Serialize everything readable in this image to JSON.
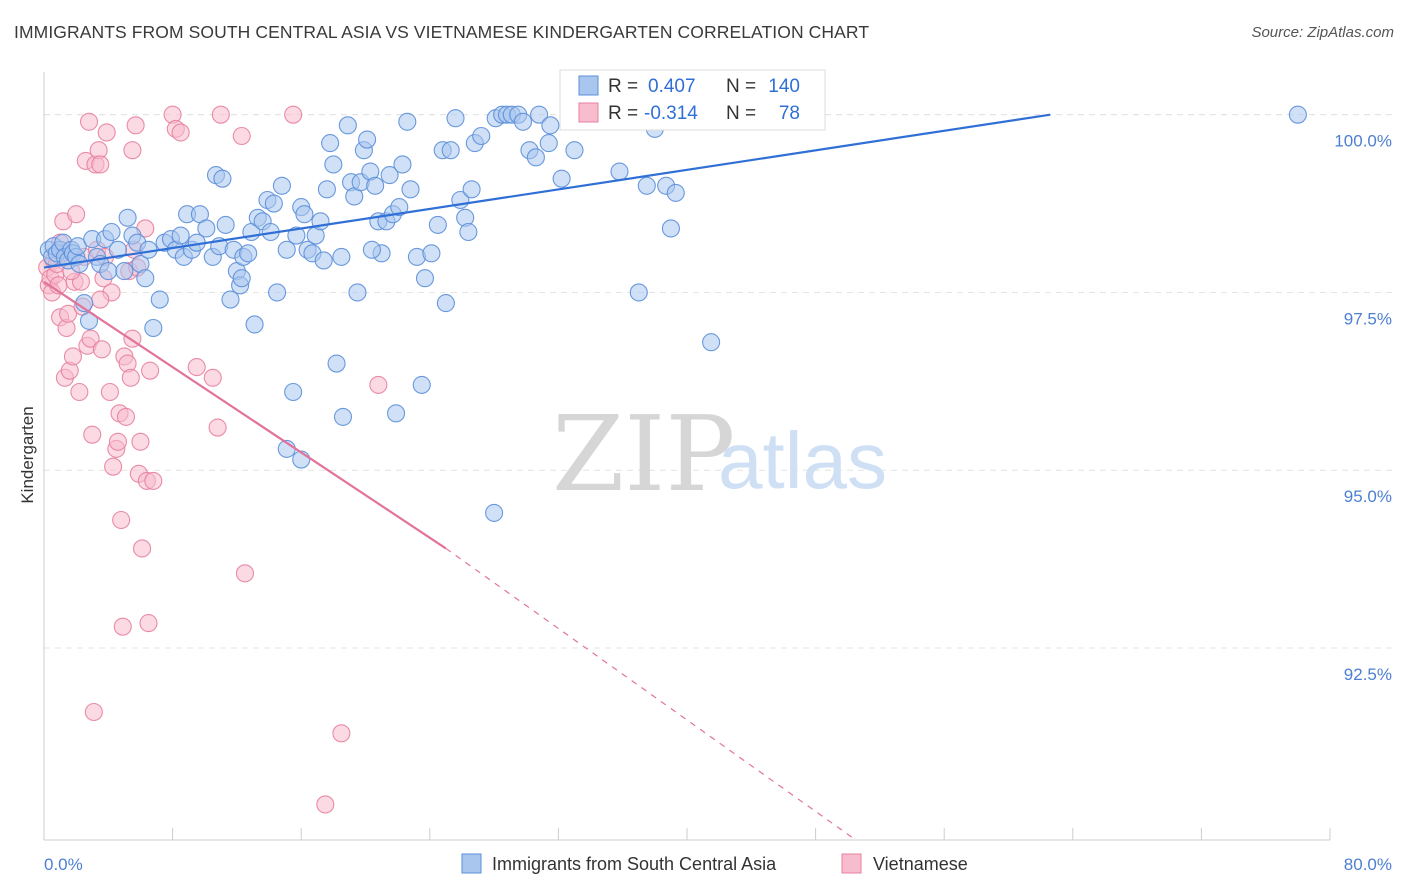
{
  "header": {
    "title": "IMMIGRANTS FROM SOUTH CENTRAL ASIA VS VIETNAMESE KINDERGARTEN CORRELATION CHART",
    "source": "Source: ZipAtlas.com"
  },
  "watermark": {
    "zip": "ZIP",
    "atlas": "atlas"
  },
  "stats": {
    "r_label": "R =",
    "n_label": "N =",
    "blue": {
      "r": "0.407",
      "n": "140"
    },
    "pink": {
      "r": "-0.314",
      "n": "78"
    }
  },
  "colors": {
    "blue_fill": "#a9c6ef",
    "blue_stroke": "#5b8fd9",
    "blue_line": "#2f6fd6",
    "pink_fill": "#f7bccd",
    "pink_stroke": "#e7819f",
    "pink_line": "#e2739a",
    "grid": "#e4e4e4",
    "tick_text": "#4d7fd1"
  },
  "chart_data": {
    "type": "scatter",
    "title": "IMMIGRANTS FROM SOUTH CENTRAL ASIA VS VIETNAMESE KINDERGARTEN CORRELATION CHART",
    "xlabel": "",
    "ylabel": "Kindergarten",
    "xlim": [
      0,
      80
    ],
    "ylim": [
      89.8,
      100.6
    ],
    "x_tick_labels": [
      "0.0%",
      "80.0%"
    ],
    "y_ticks": [
      92.5,
      95.0,
      97.5,
      100.0
    ],
    "y_tick_labels": [
      "92.5%",
      "95.0%",
      "97.5%",
      "100.0%"
    ],
    "legend_position": "bottom-center",
    "series": [
      {
        "name": "Immigrants from South Central Asia",
        "color": "#5b8fd9",
        "r": 0.407,
        "n": 140,
        "trend": {
          "x": [
            0,
            62.6
          ],
          "y": [
            97.85,
            100.0
          ]
        },
        "points": [
          [
            0.3,
            98.1
          ],
          [
            0.5,
            98.0
          ],
          [
            0.6,
            98.15
          ],
          [
            0.8,
            98.05
          ],
          [
            1.0,
            98.1
          ],
          [
            1.2,
            98.2
          ],
          [
            1.3,
            98.0
          ],
          [
            1.5,
            97.95
          ],
          [
            1.7,
            98.1
          ],
          [
            1.8,
            98.05
          ],
          [
            2.0,
            98.0
          ],
          [
            2.1,
            98.15
          ],
          [
            2.2,
            97.9
          ],
          [
            2.5,
            97.35
          ],
          [
            2.8,
            97.1
          ],
          [
            3.0,
            98.25
          ],
          [
            3.3,
            98.0
          ],
          [
            3.5,
            97.9
          ],
          [
            3.8,
            98.25
          ],
          [
            4.0,
            97.8
          ],
          [
            4.2,
            98.35
          ],
          [
            4.6,
            98.1
          ],
          [
            5.0,
            97.8
          ],
          [
            5.2,
            98.55
          ],
          [
            5.5,
            98.3
          ],
          [
            5.8,
            98.2
          ],
          [
            6.0,
            97.9
          ],
          [
            6.3,
            97.7
          ],
          [
            6.5,
            98.1
          ],
          [
            6.8,
            97.0
          ],
          [
            7.2,
            97.4
          ],
          [
            7.5,
            98.2
          ],
          [
            7.9,
            98.25
          ],
          [
            8.2,
            98.1
          ],
          [
            8.5,
            98.3
          ],
          [
            8.7,
            98.0
          ],
          [
            8.9,
            98.6
          ],
          [
            9.2,
            98.1
          ],
          [
            9.5,
            98.2
          ],
          [
            9.7,
            98.6
          ],
          [
            10.1,
            98.4
          ],
          [
            10.5,
            98.0
          ],
          [
            10.7,
            99.15
          ],
          [
            10.9,
            98.15
          ],
          [
            11.1,
            99.1
          ],
          [
            11.3,
            98.45
          ],
          [
            11.6,
            97.4
          ],
          [
            11.8,
            98.1
          ],
          [
            12.0,
            97.8
          ],
          [
            12.2,
            97.6
          ],
          [
            12.4,
            98.0
          ],
          [
            12.7,
            98.05
          ],
          [
            12.9,
            98.35
          ],
          [
            13.1,
            97.05
          ],
          [
            13.3,
            98.55
          ],
          [
            13.6,
            98.5
          ],
          [
            13.9,
            98.8
          ],
          [
            14.1,
            98.35
          ],
          [
            14.3,
            98.75
          ],
          [
            14.5,
            97.5
          ],
          [
            14.8,
            99.0
          ],
          [
            15.1,
            98.1
          ],
          [
            15.5,
            96.1
          ],
          [
            15.7,
            98.3
          ],
          [
            16.0,
            98.7
          ],
          [
            16.2,
            98.6
          ],
          [
            16.4,
            98.1
          ],
          [
            16.7,
            98.05
          ],
          [
            16.9,
            98.3
          ],
          [
            17.2,
            98.5
          ],
          [
            17.4,
            97.95
          ],
          [
            17.6,
            98.95
          ],
          [
            17.8,
            99.6
          ],
          [
            18.0,
            99.3
          ],
          [
            18.2,
            96.5
          ],
          [
            18.5,
            98.0
          ],
          [
            18.6,
            95.75
          ],
          [
            18.9,
            99.85
          ],
          [
            19.1,
            99.05
          ],
          [
            19.3,
            98.85
          ],
          [
            19.5,
            97.5
          ],
          [
            19.7,
            99.05
          ],
          [
            19.9,
            99.5
          ],
          [
            20.1,
            99.65
          ],
          [
            20.3,
            99.2
          ],
          [
            20.6,
            99.0
          ],
          [
            20.8,
            98.5
          ],
          [
            21.0,
            98.05
          ],
          [
            21.3,
            98.5
          ],
          [
            21.5,
            99.15
          ],
          [
            21.7,
            98.6
          ],
          [
            21.9,
            95.8
          ],
          [
            22.1,
            98.7
          ],
          [
            22.3,
            99.3
          ],
          [
            22.6,
            99.9
          ],
          [
            22.8,
            98.95
          ],
          [
            23.2,
            98.0
          ],
          [
            23.5,
            96.2
          ],
          [
            23.7,
            97.7
          ],
          [
            24.1,
            98.05
          ],
          [
            24.5,
            98.45
          ],
          [
            24.8,
            99.5
          ],
          [
            25.0,
            97.35
          ],
          [
            25.3,
            99.5
          ],
          [
            25.6,
            99.95
          ],
          [
            25.9,
            98.8
          ],
          [
            26.2,
            98.55
          ],
          [
            26.4,
            98.35
          ],
          [
            26.6,
            98.95
          ],
          [
            26.8,
            99.6
          ],
          [
            27.2,
            99.7
          ],
          [
            28.1,
            99.95
          ],
          [
            28.5,
            100.0
          ],
          [
            28.8,
            100.0
          ],
          [
            29.1,
            100.0
          ],
          [
            29.5,
            100.0
          ],
          [
            29.8,
            99.9
          ],
          [
            30.2,
            99.5
          ],
          [
            30.6,
            99.4
          ],
          [
            30.8,
            100.0
          ],
          [
            31.5,
            99.85
          ],
          [
            32.2,
            99.1
          ],
          [
            33.0,
            99.5
          ],
          [
            35.8,
            99.2
          ],
          [
            36.5,
            100.0
          ],
          [
            37.0,
            97.5
          ],
          [
            37.5,
            99.0
          ],
          [
            38.0,
            99.8
          ],
          [
            38.7,
            99.0
          ],
          [
            39.0,
            98.4
          ],
          [
            39.3,
            98.9
          ],
          [
            41.5,
            96.8
          ],
          [
            45.0,
            100.0
          ],
          [
            78.0,
            100.0
          ],
          [
            15.1,
            95.3
          ],
          [
            16.0,
            95.15
          ],
          [
            28.0,
            94.4
          ],
          [
            12.3,
            97.7
          ],
          [
            20.4,
            98.1
          ],
          [
            31.4,
            99.6
          ]
        ]
      },
      {
        "name": "Vietnamese",
        "color": "#e7819f",
        "r": -0.314,
        "n": 78,
        "trend": {
          "x": [
            0,
            25
          ],
          "y": [
            97.65,
            93.9
          ]
        },
        "trend_dashed": {
          "x": [
            25,
            50.5
          ],
          "y": [
            93.9,
            89.8
          ]
        },
        "points": [
          [
            0.2,
            97.85
          ],
          [
            0.3,
            97.6
          ],
          [
            0.4,
            97.7
          ],
          [
            0.5,
            97.5
          ],
          [
            0.6,
            97.95
          ],
          [
            0.7,
            97.75
          ],
          [
            0.9,
            97.6
          ],
          [
            1.0,
            97.15
          ],
          [
            1.1,
            98.05
          ],
          [
            1.2,
            98.5
          ],
          [
            1.3,
            96.3
          ],
          [
            1.4,
            97.0
          ],
          [
            1.5,
            97.2
          ],
          [
            1.6,
            96.4
          ],
          [
            1.8,
            96.6
          ],
          [
            1.9,
            97.65
          ],
          [
            2.0,
            98.6
          ],
          [
            2.2,
            96.1
          ],
          [
            2.3,
            97.65
          ],
          [
            2.5,
            98.0
          ],
          [
            2.6,
            99.35
          ],
          [
            2.7,
            96.75
          ],
          [
            2.8,
            99.9
          ],
          [
            2.9,
            96.85
          ],
          [
            3.1,
            91.6
          ],
          [
            3.0,
            95.5
          ],
          [
            3.2,
            99.3
          ],
          [
            3.3,
            98.1
          ],
          [
            3.4,
            99.5
          ],
          [
            3.5,
            99.3
          ],
          [
            3.6,
            96.7
          ],
          [
            3.7,
            97.7
          ],
          [
            3.8,
            98.0
          ],
          [
            3.9,
            99.75
          ],
          [
            4.1,
            96.1
          ],
          [
            4.2,
            97.5
          ],
          [
            4.3,
            95.05
          ],
          [
            4.5,
            95.3
          ],
          [
            4.6,
            95.4
          ],
          [
            4.7,
            95.8
          ],
          [
            4.8,
            94.3
          ],
          [
            4.9,
            92.8
          ],
          [
            5.0,
            96.6
          ],
          [
            5.1,
            95.75
          ],
          [
            5.2,
            96.5
          ],
          [
            5.3,
            97.8
          ],
          [
            5.4,
            96.3
          ],
          [
            5.5,
            96.85
          ],
          [
            5.6,
            98.1
          ],
          [
            5.7,
            99.85
          ],
          [
            5.8,
            97.85
          ],
          [
            5.9,
            94.95
          ],
          [
            6.0,
            95.4
          ],
          [
            6.1,
            93.9
          ],
          [
            6.3,
            98.4
          ],
          [
            6.4,
            94.85
          ],
          [
            6.5,
            92.85
          ],
          [
            6.6,
            96.4
          ],
          [
            6.8,
            94.85
          ],
          [
            8.0,
            100.0
          ],
          [
            8.2,
            99.8
          ],
          [
            9.5,
            96.45
          ],
          [
            10.5,
            96.3
          ],
          [
            10.8,
            95.6
          ],
          [
            11.0,
            100.0
          ],
          [
            12.3,
            99.7
          ],
          [
            12.5,
            93.55
          ],
          [
            15.5,
            100.0
          ],
          [
            17.5,
            90.3
          ],
          [
            18.5,
            91.3
          ],
          [
            20.8,
            96.2
          ],
          [
            8.5,
            99.75
          ],
          [
            0.8,
            97.9
          ],
          [
            2.4,
            97.3
          ],
          [
            5.5,
            99.5
          ],
          [
            1.0,
            98.2
          ],
          [
            3.5,
            97.4
          ],
          [
            1.7,
            97.8
          ]
        ]
      }
    ]
  },
  "legend": {
    "items": [
      {
        "label": "Immigrants from South Central Asia"
      },
      {
        "label": "Vietnamese"
      }
    ]
  }
}
